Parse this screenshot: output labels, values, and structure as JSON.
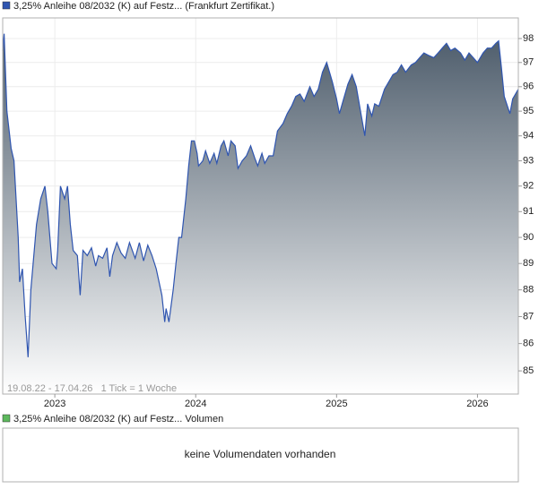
{
  "chart_data": {
    "type": "area",
    "legend": "3,25% Anleihe 08/2032 (K) auf Festz... (Frankfurt Zertifikat.)",
    "subtitle": "19.08.22 - 17.04.26   1 Tick = 1 Woche",
    "log_scale": true,
    "grid": true,
    "xlim": [
      2022.63,
      2026.29
    ],
    "xticks": [
      2023,
      2024,
      2025,
      2026
    ],
    "ylim": [
      84.16,
      98.87
    ],
    "yticks": [
      85,
      86,
      87,
      88,
      89,
      90,
      91,
      92,
      93,
      94,
      95,
      96,
      97,
      98
    ],
    "x": [
      2022.63,
      2022.64,
      2022.66,
      2022.69,
      2022.71,
      2022.74,
      2022.75,
      2022.77,
      2022.79,
      2022.81,
      2022.83,
      2022.87,
      2022.9,
      2022.93,
      2022.95,
      2022.98,
      2023.01,
      2023.02,
      2023.04,
      2023.07,
      2023.09,
      2023.11,
      2023.13,
      2023.16,
      2023.18,
      2023.2,
      2023.23,
      2023.26,
      2023.29,
      2023.31,
      2023.34,
      2023.37,
      2023.39,
      2023.41,
      2023.44,
      2023.47,
      2023.5,
      2023.53,
      2023.57,
      2023.6,
      2023.63,
      2023.66,
      2023.69,
      2023.72,
      2023.76,
      2023.78,
      2023.79,
      2023.81,
      2023.84,
      2023.86,
      2023.88,
      2023.9,
      2023.93,
      2023.95,
      2023.97,
      2023.99,
      2024.01,
      2024.02,
      2024.05,
      2024.07,
      2024.1,
      2024.13,
      2024.15,
      2024.18,
      2024.2,
      2024.23,
      2024.25,
      2024.28,
      2024.3,
      2024.33,
      2024.36,
      2024.39,
      2024.42,
      2024.44,
      2024.47,
      2024.49,
      2024.52,
      2024.55,
      2024.58,
      2024.62,
      2024.65,
      2024.68,
      2024.71,
      2024.74,
      2024.77,
      2024.81,
      2024.84,
      2024.87,
      2024.9,
      2024.93,
      2024.97,
      2025.0,
      2025.02,
      2025.05,
      2025.08,
      2025.11,
      2025.14,
      2025.17,
      2025.2,
      2025.22,
      2025.25,
      2025.27,
      2025.3,
      2025.34,
      2025.37,
      2025.4,
      2025.43,
      2025.46,
      2025.49,
      2025.53,
      2025.56,
      2025.59,
      2025.62,
      2025.65,
      2025.69,
      2025.72,
      2025.75,
      2025.78,
      2025.81,
      2025.84,
      2025.88,
      2025.91,
      2025.94,
      2025.97,
      2026.0,
      2026.04,
      2026.07,
      2026.1,
      2026.13,
      2026.15,
      2026.17,
      2026.19,
      2026.23,
      2026.25,
      2026.29
    ],
    "series": [
      {
        "name": "3,25% Anleihe 08/2032 (K) auf Festz... (Frankfurt Zertifikat.)",
        "color": "#2f55b0",
        "values": [
          97.5,
          98.2,
          95,
          93.5,
          93,
          90,
          88.3,
          88.8,
          87,
          85.5,
          88,
          90.5,
          91.5,
          92,
          91,
          89,
          88.8,
          89.5,
          92,
          91.5,
          92,
          90.5,
          89.5,
          89.3,
          87.8,
          89.5,
          89.3,
          89.6,
          88.9,
          89.3,
          89.2,
          89.6,
          88.5,
          89.3,
          89.8,
          89.4,
          89.2,
          89.8,
          89.2,
          89.8,
          89.1,
          89.7,
          89.3,
          88.8,
          87.8,
          86.8,
          87.3,
          86.8,
          88,
          89,
          90,
          90,
          91.5,
          92.8,
          93.8,
          93.8,
          93.3,
          92.8,
          93,
          93.4,
          92.9,
          93.3,
          92.9,
          93.6,
          93.8,
          93.2,
          93.8,
          93.6,
          92.7,
          93,
          93.2,
          93.6,
          93.1,
          92.8,
          93.3,
          92.9,
          93.2,
          93.2,
          94.2,
          94.5,
          94.9,
          95.2,
          95.6,
          95.7,
          95.4,
          96,
          95.6,
          95.9,
          96.6,
          97,
          96.2,
          95.5,
          94.9,
          95.5,
          96.1,
          96.5,
          96,
          95,
          94,
          95.3,
          94.8,
          95.3,
          95.2,
          95.9,
          96.2,
          96.5,
          96.6,
          96.9,
          96.6,
          96.9,
          97,
          97.2,
          97.4,
          97.3,
          97.2,
          97.4,
          97.6,
          97.8,
          97.5,
          97.6,
          97.4,
          97.1,
          97.4,
          97.2,
          97,
          97.4,
          97.6,
          97.6,
          97.8,
          97.9,
          96.8,
          95.6,
          94.9,
          95.5,
          95.9
        ]
      }
    ]
  },
  "volume_panel": {
    "legend": "3,25% Anleihe 08/2032 (K) auf Festz... Volumen",
    "color": "#5cb85c",
    "message": "keine Volumendaten vorhanden"
  }
}
